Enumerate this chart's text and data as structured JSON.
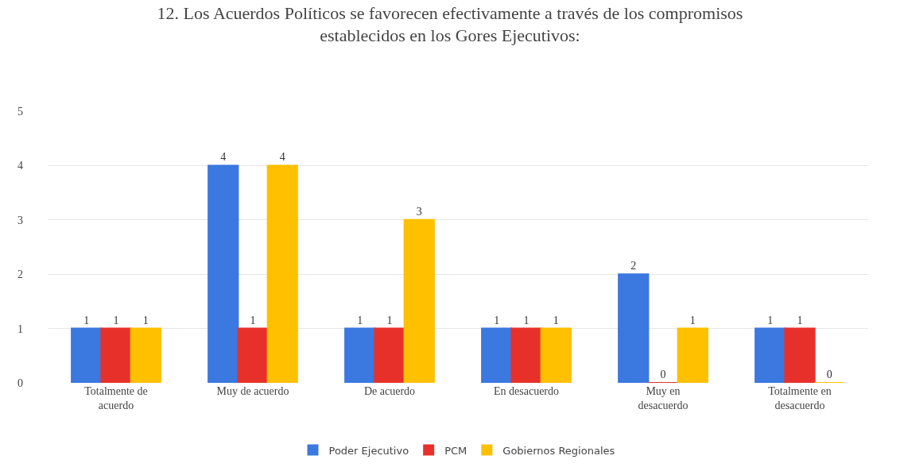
{
  "chart_data": {
    "type": "bar",
    "title": "12. Los Acuerdos Políticos se favorecen efectivamente a través de los compromisos establecidos en los Gores Ejecutivos:",
    "categories": [
      "Totalmente de acuerdo",
      "Muy de acuerdo",
      "De acuerdo",
      "En desacuerdo",
      "Muy en desacuerdo",
      "Totalmente en desacuerdo"
    ],
    "series": [
      {
        "name": "Poder Ejecutivo",
        "color": "#3b78e0",
        "values": [
          1,
          4,
          1,
          1,
          2,
          1
        ]
      },
      {
        "name": "PCM",
        "color": "#e8302a",
        "values": [
          1,
          1,
          1,
          1,
          0,
          1
        ]
      },
      {
        "name": "Gobiernos Regionales",
        "color": "#ffc000",
        "values": [
          1,
          4,
          3,
          1,
          1,
          0
        ]
      }
    ],
    "ylim": [
      0,
      5
    ],
    "yticks": [
      0,
      1,
      2,
      3,
      4,
      5
    ],
    "grid": "y",
    "legend": "bottom",
    "data_labels": true
  }
}
